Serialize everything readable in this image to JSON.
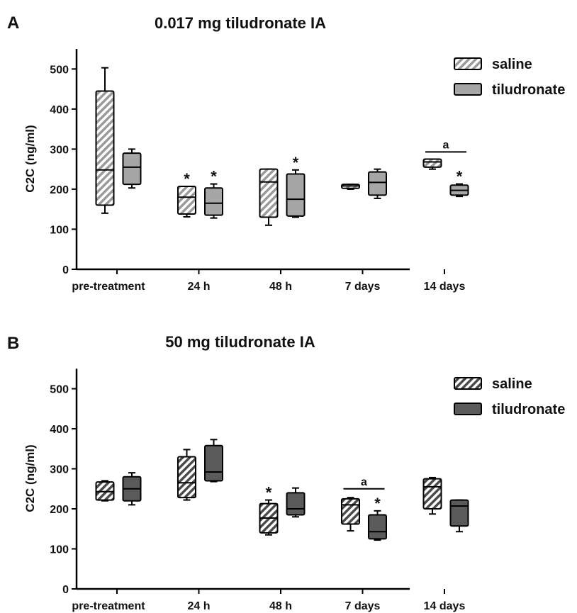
{
  "chart_data": [
    {
      "panel_letter": "A",
      "type": "boxplot",
      "title": "0.017 mg tiludronate IA",
      "ylabel": "C2C (ng/ml)",
      "ylim": [
        0,
        550
      ],
      "yticks": [
        0,
        100,
        200,
        300,
        400,
        500
      ],
      "categories": [
        "pre-treatment",
        "24 h",
        "48 h",
        "7 days",
        "14 days"
      ],
      "legend_position": "right",
      "series": [
        {
          "name": "saline",
          "pattern": "hatched",
          "fill": "#bdbdbd",
          "boxes": [
            {
              "min": 140,
              "q1": 160,
              "median": 248,
              "q3": 445,
              "max": 503
            },
            {
              "min": 131,
              "q1": 138,
              "median": 180,
              "q3": 207,
              "max": 207
            },
            {
              "min": 110,
              "q1": 130,
              "median": 218,
              "q3": 250,
              "max": 250
            },
            {
              "min": 200,
              "q1": 202,
              "median": 208,
              "q3": 212,
              "max": 212
            },
            {
              "min": 250,
              "q1": 255,
              "median": 268,
              "q3": 275,
              "max": 275
            }
          ]
        },
        {
          "name": "tiludronate",
          "pattern": "solid",
          "fill": "#a6a6a6",
          "boxes": [
            {
              "min": 203,
              "q1": 212,
              "median": 255,
              "q3": 290,
              "max": 300
            },
            {
              "min": 128,
              "q1": 135,
              "median": 165,
              "q3": 203,
              "max": 213
            },
            {
              "min": 130,
              "q1": 133,
              "median": 175,
              "q3": 238,
              "max": 248
            },
            {
              "min": 177,
              "q1": 185,
              "median": 217,
              "q3": 243,
              "max": 250
            },
            {
              "min": 182,
              "q1": 185,
              "median": 197,
              "q3": 210,
              "max": 213
            }
          ]
        }
      ],
      "annotations": [
        {
          "text": "*",
          "category": 1,
          "series": 0
        },
        {
          "text": "*",
          "category": 1,
          "series": 1
        },
        {
          "text": "*",
          "category": 2,
          "series": 1
        },
        {
          "text": "*",
          "category": 4,
          "series": 1
        },
        {
          "text": "a",
          "category": 4,
          "bracket": true,
          "y": 293
        }
      ]
    },
    {
      "panel_letter": "B",
      "type": "boxplot",
      "title": "50 mg tiludronate IA",
      "ylabel": "C2C (ng/ml)",
      "ylim": [
        0,
        550
      ],
      "yticks": [
        0,
        100,
        200,
        300,
        400,
        500
      ],
      "categories": [
        "pre-treatment",
        "24 h",
        "48 h",
        "7 days",
        "14 days"
      ],
      "legend_position": "right",
      "series": [
        {
          "name": "saline",
          "pattern": "hatched",
          "fill": "#6e6e6e",
          "boxes": [
            {
              "min": 220,
              "q1": 222,
              "median": 243,
              "q3": 267,
              "max": 270
            },
            {
              "min": 222,
              "q1": 228,
              "median": 265,
              "q3": 330,
              "max": 348
            },
            {
              "min": 135,
              "q1": 140,
              "median": 177,
              "q3": 213,
              "max": 222
            },
            {
              "min": 145,
              "q1": 162,
              "median": 210,
              "q3": 225,
              "max": 228
            },
            {
              "min": 187,
              "q1": 200,
              "median": 255,
              "q3": 275,
              "max": 278
            }
          ]
        },
        {
          "name": "tiludronate",
          "pattern": "solid",
          "fill": "#5a5a5a",
          "boxes": [
            {
              "min": 210,
              "q1": 220,
              "median": 250,
              "q3": 280,
              "max": 290
            },
            {
              "min": 268,
              "q1": 270,
              "median": 292,
              "q3": 358,
              "max": 373
            },
            {
              "min": 180,
              "q1": 185,
              "median": 200,
              "q3": 240,
              "max": 252
            },
            {
              "min": 122,
              "q1": 125,
              "median": 143,
              "q3": 185,
              "max": 195
            },
            {
              "min": 143,
              "q1": 157,
              "median": 207,
              "q3": 222,
              "max": 222
            }
          ]
        }
      ],
      "annotations": [
        {
          "text": "*",
          "category": 2,
          "series": 0
        },
        {
          "text": "*",
          "category": 3,
          "series": 1
        },
        {
          "text": "a",
          "category": 3,
          "bracket": true,
          "y": 250
        }
      ]
    }
  ]
}
